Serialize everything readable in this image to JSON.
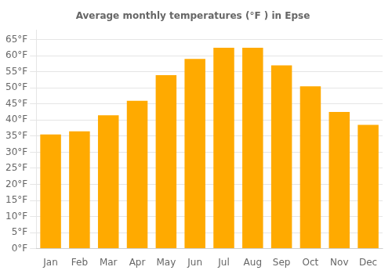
{
  "chart_data": {
    "type": "bar",
    "title": "Average monthly temperatures (°F ) in Epse",
    "categories": [
      "Jan",
      "Feb",
      "Mar",
      "Apr",
      "May",
      "Jun",
      "Jul",
      "Aug",
      "Sep",
      "Oct",
      "Nov",
      "Dec"
    ],
    "values": [
      35.5,
      36.5,
      41.5,
      46.0,
      54.0,
      59.0,
      62.5,
      62.5,
      57.0,
      50.5,
      42.5,
      38.5
    ],
    "color": "#FFAA00",
    "ylim": [
      0,
      68
    ],
    "yticks": [
      {
        "value": 0,
        "label": "0°F"
      },
      {
        "value": 5,
        "label": "5°F"
      },
      {
        "value": 10,
        "label": "10°F"
      },
      {
        "value": 15,
        "label": "15°F"
      },
      {
        "value": 20,
        "label": "20°F"
      },
      {
        "value": 25,
        "label": "25°F"
      },
      {
        "value": 30,
        "label": "30°F"
      },
      {
        "value": 35,
        "label": "35°F"
      },
      {
        "value": 40,
        "label": "40°F"
      },
      {
        "value": 45,
        "label": "45°F"
      },
      {
        "value": 50,
        "label": "50°F"
      },
      {
        "value": 55,
        "label": "55°F"
      },
      {
        "value": 60,
        "label": "60°F"
      },
      {
        "value": 65,
        "label": "65°F"
      }
    ],
    "grid": true
  }
}
